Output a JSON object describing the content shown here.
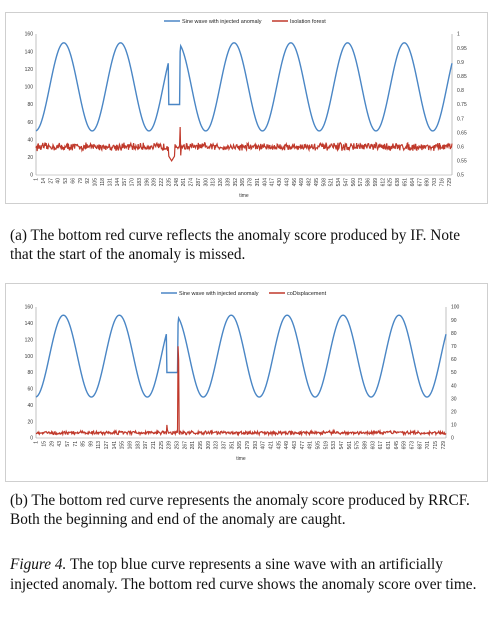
{
  "chart_data": [
    {
      "type": "line",
      "x_range": [
        1,
        734
      ],
      "x_ticks": [
        "1",
        "14",
        "27",
        "40",
        "53",
        "66",
        "79",
        "92",
        "105",
        "118",
        "131",
        "144",
        "157",
        "170",
        "183",
        "196",
        "209",
        "222",
        "235",
        "248",
        "261",
        "274",
        "287",
        "300",
        "313",
        "326",
        "339",
        "352",
        "365",
        "378",
        "391",
        "404",
        "417",
        "430",
        "443",
        "456",
        "469",
        "482",
        "495",
        "508",
        "521",
        "534",
        "547",
        "560",
        "573",
        "586",
        "599",
        "612",
        "625",
        "638",
        "651",
        "664",
        "677",
        "690",
        "703",
        "716",
        "729"
      ],
      "xlabel": "time",
      "y_left_range": [
        0,
        160
      ],
      "y_left_ticks": [
        "0",
        "20",
        "40",
        "60",
        "80",
        "100",
        "120",
        "140",
        "160"
      ],
      "y_right_range": [
        0.5,
        1
      ],
      "y_right_ticks": [
        "0.5",
        "0.55",
        "0.6",
        "0.65",
        "0.7",
        "0.75",
        "0.8",
        "0.85",
        "0.9",
        "0.95",
        "1"
      ],
      "legend_position": "top-center",
      "series": [
        {
          "name": "Sine wave with injected anomaly",
          "color": "#4a86c5",
          "axis": "left",
          "description_values": {
            "baseline": 100,
            "amplitude": 50,
            "period": 100,
            "anomaly_start": 235,
            "anomaly_end": 255,
            "anomaly_level": 80
          }
        },
        {
          "name": "Isolation forest",
          "color": "#c0392b",
          "axis": "right",
          "description_values": {
            "baseline": 0.6,
            "noise": 0.01,
            "peak_time": 255,
            "peak_value": 0.67,
            "dip_time": 240,
            "dip_value": 0.55
          }
        }
      ]
    },
    {
      "type": "line",
      "x_range": [
        1,
        734
      ],
      "x_ticks": [
        "1",
        "15",
        "29",
        "43",
        "57",
        "71",
        "85",
        "99",
        "113",
        "127",
        "141",
        "155",
        "169",
        "183",
        "197",
        "211",
        "225",
        "239",
        "253",
        "267",
        "281",
        "295",
        "309",
        "323",
        "337",
        "351",
        "365",
        "379",
        "393",
        "407",
        "421",
        "435",
        "449",
        "463",
        "477",
        "491",
        "505",
        "519",
        "533",
        "547",
        "561",
        "575",
        "589",
        "603",
        "617",
        "631",
        "645",
        "659",
        "673",
        "687",
        "701",
        "715",
        "729"
      ],
      "xlabel": "time",
      "y_left_range": [
        0,
        160
      ],
      "y_left_ticks": [
        "0",
        "20",
        "40",
        "60",
        "80",
        "100",
        "120",
        "140",
        "160"
      ],
      "y_right_range": [
        0,
        100
      ],
      "y_right_ticks": [
        "0",
        "10",
        "20",
        "30",
        "40",
        "50",
        "60",
        "70",
        "80",
        "90",
        "100"
      ],
      "legend_position": "top-center",
      "series": [
        {
          "name": "Sine wave with injected anomaly",
          "color": "#4a86c5",
          "axis": "left",
          "description_values": {
            "baseline": 100,
            "amplitude": 50,
            "period": 100,
            "anomaly_start": 235,
            "anomaly_end": 255,
            "anomaly_level": 80
          }
        },
        {
          "name": "coDisplacement",
          "color": "#c0392b",
          "axis": "right",
          "description_values": {
            "baseline": 4,
            "noise": 1,
            "peak_time": 255,
            "peak_value": 70,
            "small_peak_time": 235,
            "small_peak_value": 10
          }
        }
      ]
    }
  ],
  "captions": {
    "a": "(a) The bottom red curve reflects the anomaly score produced by IF. Note that the start of the anomaly is missed.",
    "b": "(b) The bottom red curve represents the anomaly score produced by RRCF. Both the beginning and end of the anomaly are caught.",
    "figure_label": "Figure 4.",
    "figure_text": "The top blue curve represents a sine wave with an artificially injected anomaly. The bottom red curve shows the anomaly score over time."
  }
}
